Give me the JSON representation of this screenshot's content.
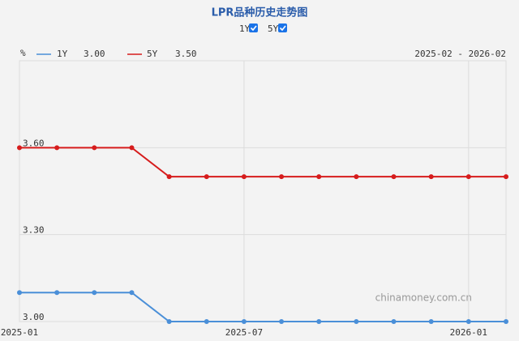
{
  "chart_data": {
    "type": "line",
    "title": "LPR品种历史走势图",
    "y_unit": "%",
    "range_label": "2025-02 - 2026-02",
    "watermark": "chinamoney.com.cn",
    "categories": [
      "2025-01",
      null,
      null,
      null,
      null,
      null,
      "2025-07",
      null,
      null,
      null,
      null,
      null,
      "2026-01",
      null
    ],
    "series": [
      {
        "name": "1Y",
        "color": "#4a8fd8",
        "legend_value": "3.00",
        "values": [
          3.1,
          3.1,
          3.1,
          3.1,
          3.0,
          3.0,
          3.0,
          3.0,
          3.0,
          3.0,
          3.0,
          3.0,
          3.0,
          3.0
        ]
      },
      {
        "name": "5Y",
        "color": "#d61c1c",
        "legend_value": "3.50",
        "values": [
          3.6,
          3.6,
          3.6,
          3.6,
          3.5,
          3.5,
          3.5,
          3.5,
          3.5,
          3.5,
          3.5,
          3.5,
          3.5,
          3.5
        ]
      }
    ],
    "ylim": [
      3.0,
      3.9
    ],
    "yticks": [
      {
        "value": 3.0,
        "label": "3.00"
      },
      {
        "value": 3.3,
        "label": "3.30"
      },
      {
        "value": 3.6,
        "label": "3.60"
      }
    ],
    "grid": true
  }
}
